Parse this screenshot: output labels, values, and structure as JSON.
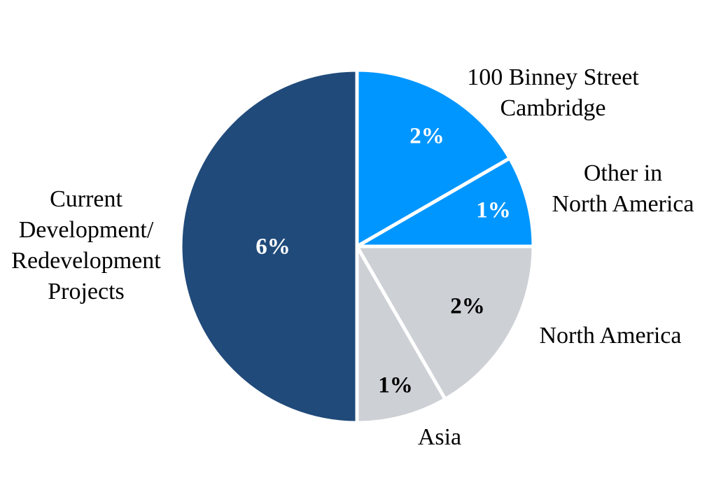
{
  "chart_data": {
    "type": "pie",
    "categories": [
      "100 Binney Street\nCambridge",
      "Other in\nNorth America",
      "North America",
      "Asia",
      "Current\nDevelopment/\nRedevelopment\nProjects"
    ],
    "values": [
      2,
      1,
      2,
      1,
      6
    ],
    "value_labels": [
      "2%",
      "1%",
      "2%",
      "1%",
      "6%"
    ],
    "colors": [
      "#0096ff",
      "#0096ff",
      "#cdd0d5",
      "#cdd0d5",
      "#204a7a"
    ]
  }
}
